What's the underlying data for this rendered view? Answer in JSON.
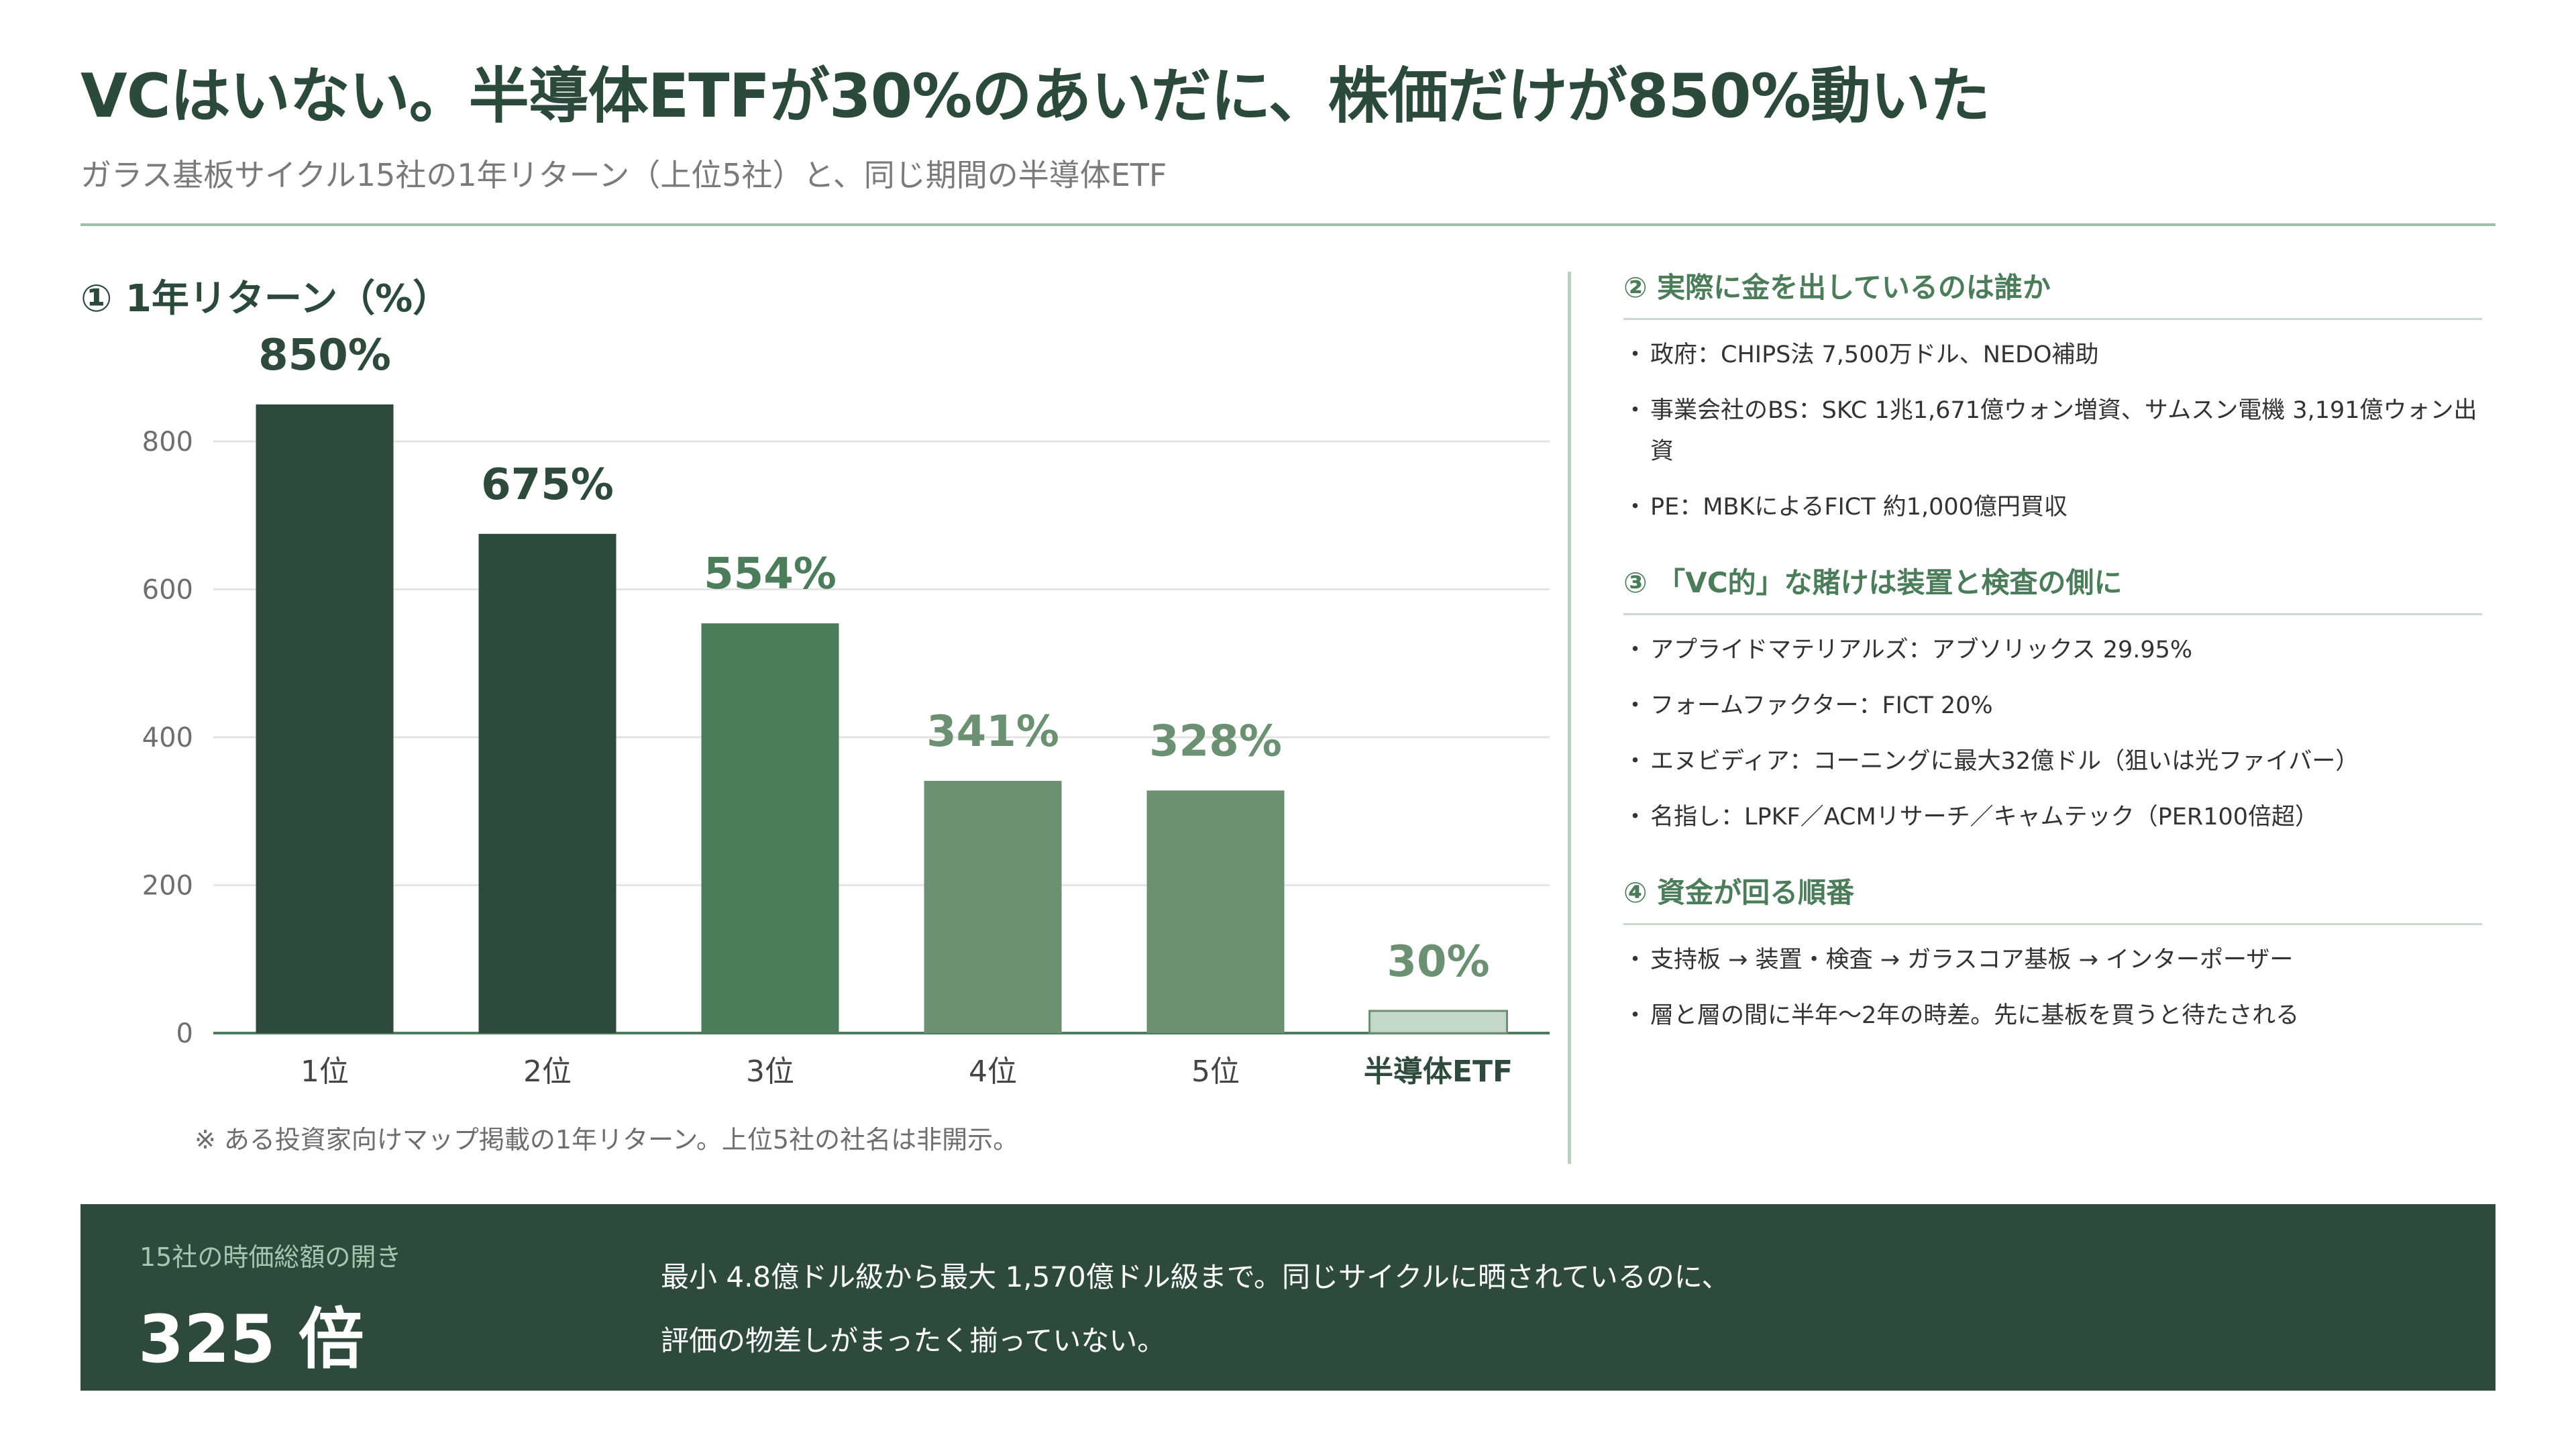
{
  "header": {
    "title": "VCはいない。半導体ETFが30%のあいだに、株価だけが850%動いた",
    "subtitle": "ガラス基板サイクル15社の1年リターン（上位5社）と、同じ期間の半導体ETF"
  },
  "chart_section": {
    "title": "① 1年リターン（%）",
    "note": "※ ある投資家向けマップ掲載の1年リターン。上位5社の社名は非開示。"
  },
  "chart_data": {
    "type": "bar",
    "title": "① 1年リターン（%）",
    "categories": [
      "1位",
      "2位",
      "3位",
      "4位",
      "5位",
      "半導体ETF"
    ],
    "values": [
      850,
      675,
      554,
      341,
      328,
      30
    ],
    "value_labels": [
      "850%",
      "675%",
      "554%",
      "341%",
      "328%",
      "30%"
    ],
    "bar_colors": [
      "#2d4a3c",
      "#2d4a3c",
      "#4b7d5a",
      "#6b9172",
      "#6b9172",
      "#c3d8c8"
    ],
    "label_colors": [
      "#2d4a3c",
      "#2d4a3c",
      "#4b7d5a",
      "#6b9172",
      "#6b9172",
      "#6b9172"
    ],
    "y_ticks": [
      0,
      200,
      400,
      600,
      800
    ],
    "ylim": [
      0,
      800
    ],
    "grid": true,
    "highlight_category": "半導体ETF"
  },
  "right_panel": {
    "sections": [
      {
        "title": "② 実際に金を出しているのは誰か",
        "items": [
          "政府：CHIPS法 7,500万ドル、NEDO補助",
          "事業会社のBS：SKC 1兆1,671億ウォン増資、サムスン電機 3,191億ウォン出資",
          "PE：MBKによるFICT 約1,000億円買収"
        ]
      },
      {
        "title": "③ 「VC的」な賭けは装置と検査の側に",
        "items": [
          "アプライドマテリアルズ：アブソリックス 29.95%",
          "フォームファクター：FICT 20%",
          "エヌビディア：コーニングに最大32億ドル（狙いは光ファイバー）",
          "名指し：LPKF／ACMリサーチ／キャムテック（PER100倍超）"
        ]
      },
      {
        "title": "④ 資金が回る順番",
        "items": [
          "支持板 → 装置・検査 → ガラスコア基板 → インターポーザー",
          "層と層の間に半年〜2年の時差。先に基板を買うと待たされる"
        ]
      }
    ]
  },
  "banner": {
    "label": "15社の時価総額の開き",
    "value": "325 倍",
    "text_line1": "最小 4.8億ドル級から最大 1,570億ドル級まで。同じサイクルに晒されているのに、",
    "text_line2": "評価の物差しがまったく揃っていない。"
  },
  "colors": {
    "primary_dark": "#2d4a3c",
    "mid_green": "#4b7d5a",
    "light_green": "#6b9172",
    "pale_green": "#c3d8c8",
    "accent_rule": "#9cc0a6"
  }
}
